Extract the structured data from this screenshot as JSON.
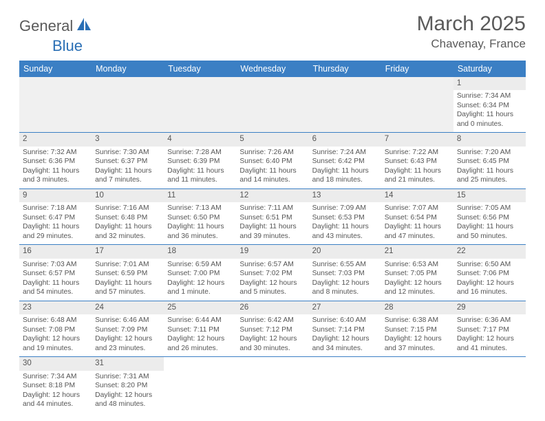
{
  "logo": {
    "part1": "General",
    "part2": "Blue"
  },
  "title": "March 2025",
  "location": "Chavenay, France",
  "colors": {
    "header_bg": "#3b7fc4",
    "header_text": "#ffffff",
    "daynum_bg": "#ececec",
    "border": "#3b7fc4",
    "text": "#555555",
    "logo_blue": "#2a6fb5",
    "logo_gray": "#5a5a5a"
  },
  "weekdays": [
    "Sunday",
    "Monday",
    "Tuesday",
    "Wednesday",
    "Thursday",
    "Friday",
    "Saturday"
  ],
  "weeks": [
    [
      null,
      null,
      null,
      null,
      null,
      null,
      {
        "n": "1",
        "sunrise": "7:34 AM",
        "sunset": "6:34 PM",
        "daylight": "11 hours and 0 minutes."
      }
    ],
    [
      {
        "n": "2",
        "sunrise": "7:32 AM",
        "sunset": "6:36 PM",
        "daylight": "11 hours and 3 minutes."
      },
      {
        "n": "3",
        "sunrise": "7:30 AM",
        "sunset": "6:37 PM",
        "daylight": "11 hours and 7 minutes."
      },
      {
        "n": "4",
        "sunrise": "7:28 AM",
        "sunset": "6:39 PM",
        "daylight": "11 hours and 11 minutes."
      },
      {
        "n": "5",
        "sunrise": "7:26 AM",
        "sunset": "6:40 PM",
        "daylight": "11 hours and 14 minutes."
      },
      {
        "n": "6",
        "sunrise": "7:24 AM",
        "sunset": "6:42 PM",
        "daylight": "11 hours and 18 minutes."
      },
      {
        "n": "7",
        "sunrise": "7:22 AM",
        "sunset": "6:43 PM",
        "daylight": "11 hours and 21 minutes."
      },
      {
        "n": "8",
        "sunrise": "7:20 AM",
        "sunset": "6:45 PM",
        "daylight": "11 hours and 25 minutes."
      }
    ],
    [
      {
        "n": "9",
        "sunrise": "7:18 AM",
        "sunset": "6:47 PM",
        "daylight": "11 hours and 29 minutes."
      },
      {
        "n": "10",
        "sunrise": "7:16 AM",
        "sunset": "6:48 PM",
        "daylight": "11 hours and 32 minutes."
      },
      {
        "n": "11",
        "sunrise": "7:13 AM",
        "sunset": "6:50 PM",
        "daylight": "11 hours and 36 minutes."
      },
      {
        "n": "12",
        "sunrise": "7:11 AM",
        "sunset": "6:51 PM",
        "daylight": "11 hours and 39 minutes."
      },
      {
        "n": "13",
        "sunrise": "7:09 AM",
        "sunset": "6:53 PM",
        "daylight": "11 hours and 43 minutes."
      },
      {
        "n": "14",
        "sunrise": "7:07 AM",
        "sunset": "6:54 PM",
        "daylight": "11 hours and 47 minutes."
      },
      {
        "n": "15",
        "sunrise": "7:05 AM",
        "sunset": "6:56 PM",
        "daylight": "11 hours and 50 minutes."
      }
    ],
    [
      {
        "n": "16",
        "sunrise": "7:03 AM",
        "sunset": "6:57 PM",
        "daylight": "11 hours and 54 minutes."
      },
      {
        "n": "17",
        "sunrise": "7:01 AM",
        "sunset": "6:59 PM",
        "daylight": "11 hours and 57 minutes."
      },
      {
        "n": "18",
        "sunrise": "6:59 AM",
        "sunset": "7:00 PM",
        "daylight": "12 hours and 1 minute."
      },
      {
        "n": "19",
        "sunrise": "6:57 AM",
        "sunset": "7:02 PM",
        "daylight": "12 hours and 5 minutes."
      },
      {
        "n": "20",
        "sunrise": "6:55 AM",
        "sunset": "7:03 PM",
        "daylight": "12 hours and 8 minutes."
      },
      {
        "n": "21",
        "sunrise": "6:53 AM",
        "sunset": "7:05 PM",
        "daylight": "12 hours and 12 minutes."
      },
      {
        "n": "22",
        "sunrise": "6:50 AM",
        "sunset": "7:06 PM",
        "daylight": "12 hours and 16 minutes."
      }
    ],
    [
      {
        "n": "23",
        "sunrise": "6:48 AM",
        "sunset": "7:08 PM",
        "daylight": "12 hours and 19 minutes."
      },
      {
        "n": "24",
        "sunrise": "6:46 AM",
        "sunset": "7:09 PM",
        "daylight": "12 hours and 23 minutes."
      },
      {
        "n": "25",
        "sunrise": "6:44 AM",
        "sunset": "7:11 PM",
        "daylight": "12 hours and 26 minutes."
      },
      {
        "n": "26",
        "sunrise": "6:42 AM",
        "sunset": "7:12 PM",
        "daylight": "12 hours and 30 minutes."
      },
      {
        "n": "27",
        "sunrise": "6:40 AM",
        "sunset": "7:14 PM",
        "daylight": "12 hours and 34 minutes."
      },
      {
        "n": "28",
        "sunrise": "6:38 AM",
        "sunset": "7:15 PM",
        "daylight": "12 hours and 37 minutes."
      },
      {
        "n": "29",
        "sunrise": "6:36 AM",
        "sunset": "7:17 PM",
        "daylight": "12 hours and 41 minutes."
      }
    ],
    [
      {
        "n": "30",
        "sunrise": "7:34 AM",
        "sunset": "8:18 PM",
        "daylight": "12 hours and 44 minutes."
      },
      {
        "n": "31",
        "sunrise": "7:31 AM",
        "sunset": "8:20 PM",
        "daylight": "12 hours and 48 minutes."
      },
      null,
      null,
      null,
      null,
      null
    ]
  ],
  "labels": {
    "sunrise": "Sunrise:",
    "sunset": "Sunset:",
    "daylight": "Daylight:"
  }
}
